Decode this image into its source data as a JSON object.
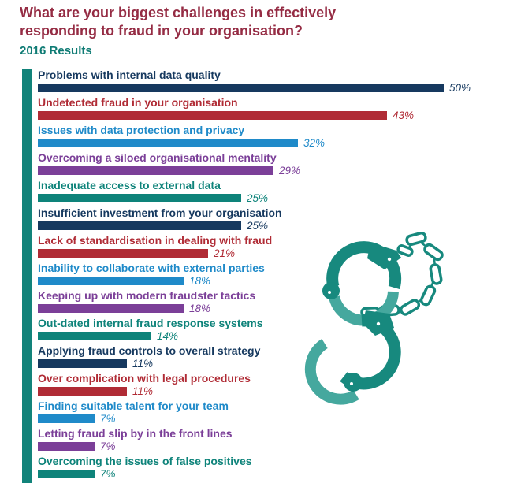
{
  "page": {
    "background": "#FFFFFF",
    "title_color": "#952C44",
    "subtitle_color": "#0E7B74",
    "accent_teal": "#12837A"
  },
  "chart_data": {
    "type": "bar",
    "orientation": "horizontal",
    "title": "What are your biggest challenges in effectively responding to fraud in your organisation?",
    "subtitle": "2016 Results",
    "value_suffix": "%",
    "xlim": [
      0,
      50
    ],
    "grid": false,
    "legend": false,
    "palette": [
      "#16395F",
      "#B02B35",
      "#1F8AC9",
      "#7B3F98",
      "#0E837A"
    ],
    "rows": [
      {
        "label": "Problems with internal data quality",
        "value": 50,
        "color": "#16395F"
      },
      {
        "label": "Undetected fraud in your organisation",
        "value": 43,
        "color": "#B02B35"
      },
      {
        "label": "Issues with data protection and privacy",
        "value": 32,
        "color": "#1F8AC9"
      },
      {
        "label": "Overcoming a siloed organisational mentality",
        "value": 29,
        "color": "#7B3F98"
      },
      {
        "label": "Inadequate access to external data",
        "value": 25,
        "color": "#0E837A"
      },
      {
        "label": "Insufficient investment from your organisation",
        "value": 25,
        "color": "#16395F"
      },
      {
        "label": "Lack of standardisation in dealing with fraud",
        "value": 21,
        "color": "#B02B35"
      },
      {
        "label": "Inability to collaborate with external parties",
        "value": 18,
        "color": "#1F8AC9"
      },
      {
        "label": "Keeping up with modern fraudster tactics",
        "value": 18,
        "color": "#7B3F98"
      },
      {
        "label": "Out-dated internal fraud response systems",
        "value": 14,
        "color": "#0E837A"
      },
      {
        "label": "Applying fraud controls to overall strategy",
        "value": 11,
        "color": "#16395F"
      },
      {
        "label": "Over complication with legal procedures",
        "value": 11,
        "color": "#B02B35"
      },
      {
        "label": "Finding suitable talent for your team",
        "value": 7,
        "color": "#1F8AC9"
      },
      {
        "label": "Letting fraud slip by in the front lines",
        "value": 7,
        "color": "#7B3F98"
      },
      {
        "label": "Overcoming the issues of false positives",
        "value": 7,
        "color": "#0E837A"
      }
    ]
  },
  "illustration": {
    "name": "handcuffs",
    "dark_teal": "#17897E",
    "light_teal": "#45A89E"
  }
}
